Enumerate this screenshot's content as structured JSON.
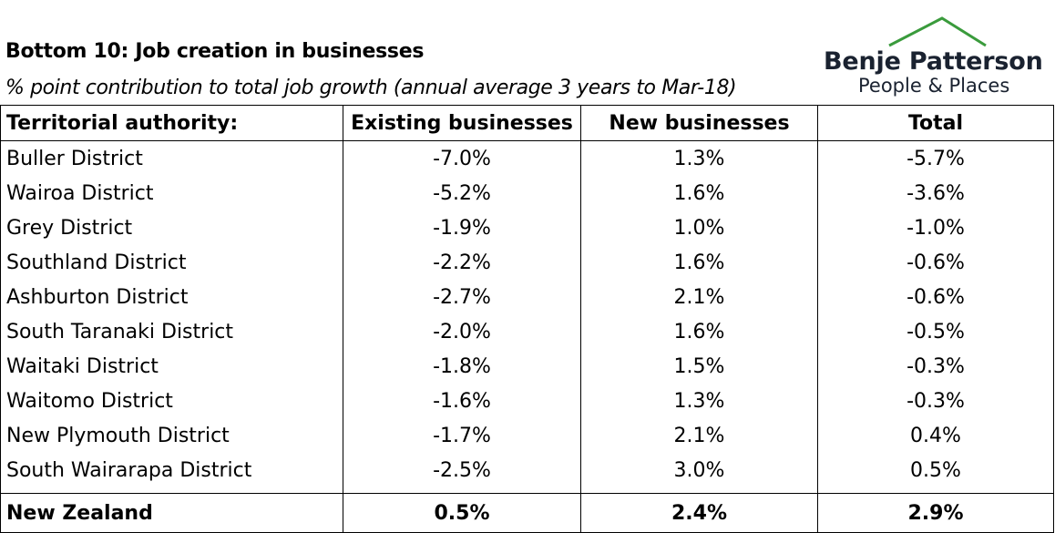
{
  "header": {
    "title": "Bottom 10: Job creation in businesses",
    "subtitle": "% point contribution to total job growth (annual average 3 years to Mar-18)"
  },
  "logo": {
    "name": "Benje Patterson",
    "tagline": "People & Places",
    "roof_icon": "green-roof-icon",
    "roof_color": "#3a9b3c",
    "text_color": "#1a2230"
  },
  "chart_data": {
    "type": "table",
    "columns": [
      "Territorial authority:",
      "Existing businesses",
      "New businesses",
      "Total"
    ],
    "rows": [
      [
        "Buller District",
        "-7.0%",
        "1.3%",
        "-5.7%"
      ],
      [
        "Wairoa District",
        "-5.2%",
        "1.6%",
        "-3.6%"
      ],
      [
        "Grey District",
        "-1.9%",
        "1.0%",
        "-1.0%"
      ],
      [
        "Southland District",
        "-2.2%",
        "1.6%",
        "-0.6%"
      ],
      [
        "Ashburton District",
        "-2.7%",
        "2.1%",
        "-0.6%"
      ],
      [
        "South Taranaki District",
        "-2.0%",
        "1.6%",
        "-0.5%"
      ],
      [
        "Waitaki District",
        "-1.8%",
        "1.5%",
        "-0.3%"
      ],
      [
        "Waitomo District",
        "-1.6%",
        "1.3%",
        "-0.3%"
      ],
      [
        "New Plymouth District",
        "-1.7%",
        "2.1%",
        "0.4%"
      ],
      [
        "South Wairarapa District",
        "-2.5%",
        "3.0%",
        "0.5%"
      ]
    ],
    "total_row": [
      "New Zealand",
      "0.5%",
      "2.4%",
      "2.9%"
    ]
  }
}
